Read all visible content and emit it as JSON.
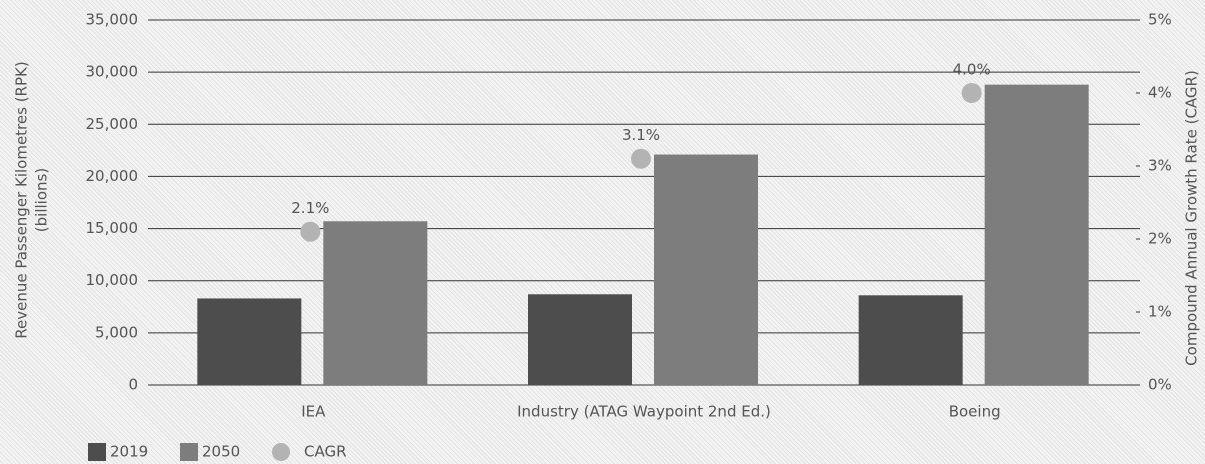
{
  "chart_data": {
    "type": "bar",
    "ylabel": [
      "Revenue Passenger Kilometres (RPK)",
      "(billions)"
    ],
    "y2label": "Compound Annual Growth Rate (CAGR)",
    "categories": [
      "IEA",
      "Industry (ATAG Waypoint 2nd Ed.)",
      "Boeing"
    ],
    "series": [
      {
        "name": "2019",
        "color": "#4d4d4d",
        "values": [
          8300,
          8700,
          8600
        ]
      },
      {
        "name": "2050",
        "color": "#7d7d7d",
        "values": [
          15700,
          22100,
          28800
        ]
      },
      {
        "name": "CAGR",
        "color": "#b3b3b3",
        "axis": "y2",
        "type": "scatter",
        "values": [
          2.1,
          3.1,
          4.0
        ],
        "value_labels": [
          "2.1%",
          "3.1%",
          "4.0%"
        ]
      }
    ],
    "ylim": [
      0,
      35000
    ],
    "yticks": [
      0,
      {
        "value": 5000,
        "label": "5,000"
      },
      {
        "value": 10000,
        "label": "10,000"
      },
      {
        "value": 15000,
        "label": "15,000"
      },
      {
        "value": 20000,
        "label": "20,000"
      },
      {
        "value": 25000,
        "label": "25,000"
      },
      {
        "value": 30000,
        "label": "30,000"
      },
      {
        "value": 35000,
        "label": "35,000"
      }
    ],
    "y2lim": [
      0,
      5
    ],
    "y2ticks": [
      {
        "value": 0,
        "label": "0%"
      },
      {
        "value": 1,
        "label": "1%"
      },
      {
        "value": 2,
        "label": "2%"
      },
      {
        "value": 3,
        "label": "3%"
      },
      {
        "value": 4,
        "label": "4%"
      },
      {
        "value": 5,
        "label": "5%"
      }
    ],
    "grid": true,
    "legend": "bottom-left"
  }
}
